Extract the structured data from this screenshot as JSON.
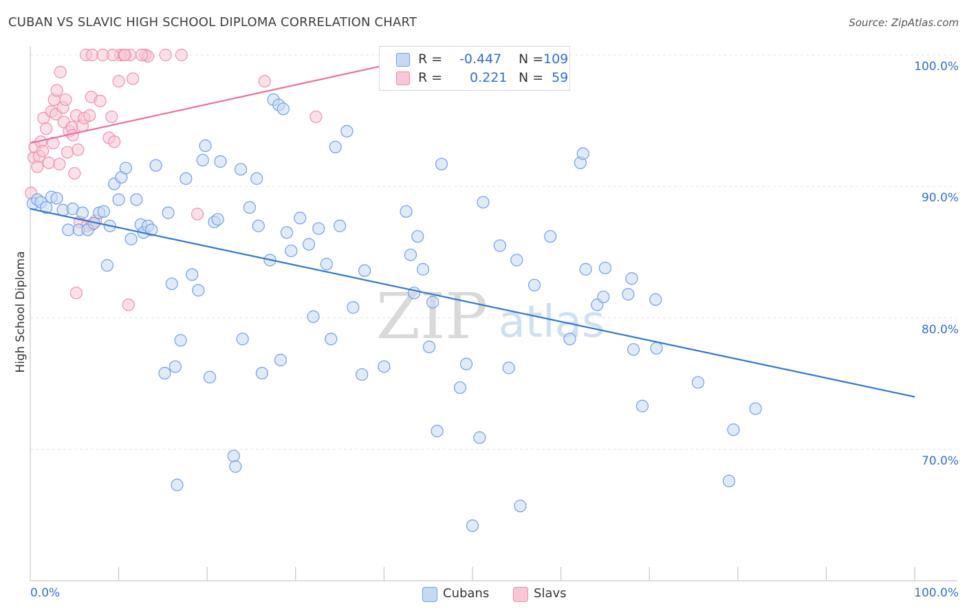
{
  "title": "CUBAN VS SLAVIC HIGH SCHOOL DIPLOMA CORRELATION CHART",
  "source": "Source: ZipAtlas.com",
  "watermark": "ZIPatlas",
  "colors": {
    "cubans": "#6f9fe6",
    "cubans_fill": "#c6d9f4",
    "cubans_line": "#2f76d2",
    "slavs": "#ef8fae",
    "slavs_fill": "#f8c6d5",
    "slavs_line": "#e8709a",
    "axis_text": "#2f6fd0",
    "grid": "#e3e3e3"
  },
  "legend_top": {
    "r_label": "R =",
    "n_label": "N =",
    "rows": [
      {
        "series": "Cubans",
        "r": "-0.447",
        "n": "109"
      },
      {
        "series": "Slavs",
        "r": "0.221",
        "n": "59"
      }
    ]
  },
  "chart_data": {
    "type": "scatter",
    "title": "CUBAN VS SLAVIC HIGH SCHOOL DIPLOMA CORRELATION CHART",
    "xlabel": "",
    "ylabel": "High School Diploma",
    "xlim": [
      0,
      100
    ],
    "ylim": [
      60.0,
      101.5
    ],
    "x_tick_labels": [
      "0.0%",
      "100.0%"
    ],
    "y_ticks": [
      70,
      80,
      90,
      100
    ],
    "y_tick_labels": [
      "70.0%",
      "80.0%",
      "90.0%",
      "100.0%"
    ],
    "grid": true,
    "legend_position": "bottom",
    "series": [
      {
        "name": "Cubans",
        "trendline": {
          "x": [
            0,
            100
          ],
          "y": [
            88.3,
            74.0
          ]
        },
        "points": [
          [
            0.3,
            88.7
          ],
          [
            0.8,
            89.0
          ],
          [
            1.2,
            88.8
          ],
          [
            1.8,
            88.4
          ],
          [
            2.4,
            89.2
          ],
          [
            3.0,
            89.1
          ],
          [
            3.7,
            88.2
          ],
          [
            4.3,
            86.7
          ],
          [
            4.8,
            88.3
          ],
          [
            5.5,
            86.7
          ],
          [
            5.9,
            88.0
          ],
          [
            6.5,
            86.7
          ],
          [
            7.2,
            87.2
          ],
          [
            7.8,
            88.0
          ],
          [
            8.3,
            88.1
          ],
          [
            8.7,
            84.0
          ],
          [
            9.0,
            87.0
          ],
          [
            9.5,
            90.2
          ],
          [
            10.0,
            89.0
          ],
          [
            10.3,
            90.7
          ],
          [
            10.8,
            91.4
          ],
          [
            11.4,
            86.0
          ],
          [
            12.0,
            89.0
          ],
          [
            12.5,
            87.1
          ],
          [
            12.8,
            86.5
          ],
          [
            13.3,
            87.0
          ],
          [
            13.7,
            86.7
          ],
          [
            14.2,
            91.6
          ],
          [
            15.6,
            88.0
          ],
          [
            16.0,
            82.6
          ],
          [
            15.2,
            75.8
          ],
          [
            16.4,
            76.3
          ],
          [
            16.6,
            67.3
          ],
          [
            17.0,
            78.3
          ],
          [
            17.6,
            90.6
          ],
          [
            18.3,
            83.3
          ],
          [
            19.0,
            82.1
          ],
          [
            19.5,
            92.0
          ],
          [
            19.8,
            93.1
          ],
          [
            20.3,
            75.5
          ],
          [
            20.8,
            87.3
          ],
          [
            21.2,
            87.5
          ],
          [
            21.5,
            91.9
          ],
          [
            23.0,
            69.5
          ],
          [
            23.2,
            68.7
          ],
          [
            23.8,
            91.3
          ],
          [
            24.0,
            78.4
          ],
          [
            24.8,
            88.4
          ],
          [
            25.6,
            90.6
          ],
          [
            25.8,
            87.0
          ],
          [
            26.2,
            75.8
          ],
          [
            27.1,
            84.4
          ],
          [
            27.5,
            96.6
          ],
          [
            28.1,
            96.2
          ],
          [
            28.3,
            76.8
          ],
          [
            28.6,
            95.9
          ],
          [
            29.0,
            86.5
          ],
          [
            29.5,
            85.1
          ],
          [
            30.5,
            87.6
          ],
          [
            31.5,
            85.6
          ],
          [
            32.0,
            80.1
          ],
          [
            32.6,
            86.8
          ],
          [
            33.5,
            84.1
          ],
          [
            34.0,
            78.4
          ],
          [
            34.5,
            93.0
          ],
          [
            35.0,
            87.0
          ],
          [
            35.8,
            94.2
          ],
          [
            36.5,
            80.8
          ],
          [
            37.5,
            75.7
          ],
          [
            37.8,
            83.6
          ],
          [
            40.0,
            76.3
          ],
          [
            42.5,
            88.1
          ],
          [
            43.0,
            84.8
          ],
          [
            43.4,
            81.9
          ],
          [
            43.8,
            86.2
          ],
          [
            44.4,
            83.7
          ],
          [
            45.1,
            77.8
          ],
          [
            45.5,
            81.2
          ],
          [
            46.0,
            71.4
          ],
          [
            46.5,
            91.7
          ],
          [
            48.6,
            74.7
          ],
          [
            49.3,
            76.5
          ],
          [
            50.8,
            70.9
          ],
          [
            51.2,
            88.8
          ],
          [
            53.1,
            85.5
          ],
          [
            54.1,
            76.2
          ],
          [
            55.0,
            84.4
          ],
          [
            55.4,
            65.7
          ],
          [
            57.0,
            82.5
          ],
          [
            58.8,
            86.2
          ],
          [
            61.0,
            78.4
          ],
          [
            62.2,
            91.8
          ],
          [
            62.5,
            92.5
          ],
          [
            62.8,
            83.7
          ],
          [
            64.1,
            81.0
          ],
          [
            64.8,
            81.6
          ],
          [
            65.0,
            83.8
          ],
          [
            67.6,
            81.8
          ],
          [
            68.0,
            83.0
          ],
          [
            68.2,
            77.6
          ],
          [
            69.2,
            73.3
          ],
          [
            70.7,
            81.4
          ],
          [
            70.8,
            77.7
          ],
          [
            75.5,
            75.1
          ],
          [
            79.0,
            67.6
          ],
          [
            79.5,
            71.5
          ],
          [
            82.0,
            73.1
          ],
          [
            50.0,
            64.2
          ]
        ]
      },
      {
        "name": "Slavs",
        "trendline": {
          "x": [
            0,
            40.0
          ],
          "y": [
            93.3,
            99.2
          ]
        },
        "points": [
          [
            0.1,
            89.5
          ],
          [
            0.4,
            92.2
          ],
          [
            0.5,
            93.0
          ],
          [
            0.8,
            91.5
          ],
          [
            1.0,
            92.3
          ],
          [
            1.2,
            93.4
          ],
          [
            1.4,
            92.7
          ],
          [
            1.5,
            95.2
          ],
          [
            1.8,
            94.4
          ],
          [
            2.1,
            91.8
          ],
          [
            2.4,
            95.7
          ],
          [
            2.6,
            93.3
          ],
          [
            2.7,
            96.6
          ],
          [
            2.9,
            95.5
          ],
          [
            3.0,
            97.3
          ],
          [
            3.3,
            91.7
          ],
          [
            3.4,
            98.7
          ],
          [
            3.7,
            96.0
          ],
          [
            3.8,
            94.9
          ],
          [
            4.0,
            96.6
          ],
          [
            4.2,
            92.6
          ],
          [
            4.4,
            94.2
          ],
          [
            4.7,
            94.5
          ],
          [
            4.8,
            93.9
          ],
          [
            5.0,
            91.0
          ],
          [
            5.2,
            95.4
          ],
          [
            5.4,
            92.8
          ],
          [
            5.6,
            87.3
          ],
          [
            5.9,
            94.6
          ],
          [
            6.1,
            95.2
          ],
          [
            6.4,
            87.0
          ],
          [
            6.7,
            95.4
          ],
          [
            6.9,
            96.8
          ],
          [
            7.0,
            87.1
          ],
          [
            7.4,
            87.4
          ],
          [
            7.9,
            96.5
          ],
          [
            8.9,
            93.7
          ],
          [
            9.2,
            95.3
          ],
          [
            9.5,
            93.4
          ],
          [
            10.0,
            98.0
          ],
          [
            10.2,
            100.0
          ],
          [
            11.3,
            100.0
          ],
          [
            11.6,
            98.2
          ],
          [
            13.0,
            100.0
          ],
          [
            13.3,
            99.9
          ],
          [
            9.3,
            100.0
          ],
          [
            10.6,
            100.0
          ],
          [
            17.1,
            100.0
          ],
          [
            18.9,
            87.9
          ],
          [
            26.5,
            98.0
          ],
          [
            32.3,
            95.3
          ],
          [
            6.3,
            100.0
          ],
          [
            7.0,
            100.0
          ],
          [
            8.2,
            100.0
          ],
          [
            10.7,
            100.0
          ],
          [
            12.6,
            100.0
          ],
          [
            15.3,
            100.0
          ],
          [
            11.1,
            81.0
          ],
          [
            5.2,
            81.9
          ]
        ]
      }
    ]
  }
}
